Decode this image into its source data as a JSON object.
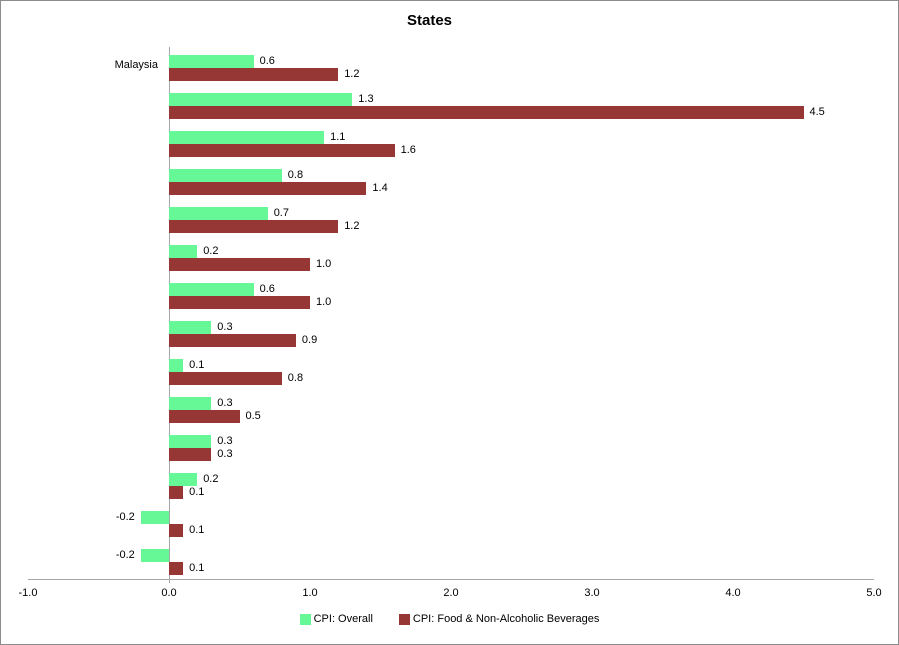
{
  "chart_data": {
    "type": "bar",
    "orientation": "horizontal",
    "title": "States",
    "categories": [
      "Malaysia",
      "",
      "",
      "",
      "",
      "",
      "",
      "",
      "",
      "",
      "",
      "",
      "",
      ""
    ],
    "series": [
      {
        "name": "CPI: Overall",
        "color": "#66F897",
        "values": [
          0.6,
          1.3,
          1.1,
          0.8,
          0.7,
          0.2,
          0.6,
          0.3,
          0.1,
          0.3,
          0.3,
          0.2,
          -0.2,
          -0.2
        ]
      },
      {
        "name": "CPI: Food & Non-Alcoholic Beverages",
        "color": "#963735",
        "values": [
          1.2,
          4.5,
          1.6,
          1.4,
          1.2,
          1.0,
          1.0,
          0.9,
          0.8,
          0.5,
          0.3,
          0.1,
          0.1,
          0.1
        ]
      }
    ],
    "xlim": [
      -1.0,
      5.0
    ],
    "x_ticks": [
      "-1.0",
      "0.0",
      "1.0",
      "2.0",
      "3.0",
      "4.0",
      "5.0"
    ],
    "data_labels": "on, one decimal",
    "grid": "off",
    "legend_position": "bottom",
    "axis_color": "#A6A6A6",
    "border_color": "#8C8C8C",
    "text_color": "#000000"
  }
}
